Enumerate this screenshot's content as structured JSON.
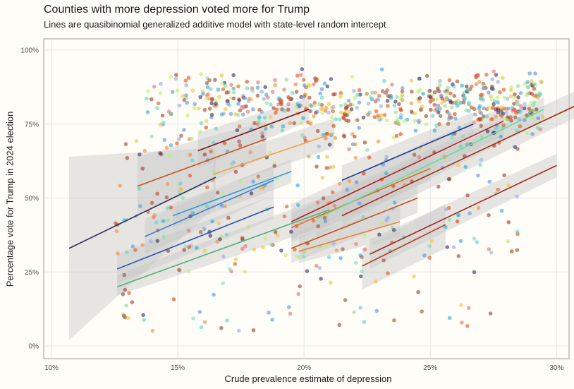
{
  "chart_data": {
    "type": "scatter",
    "title": "Counties with more depression voted more for Trump",
    "subtitle": "Lines are quasibinomial generalized additive model with state-level random intercept",
    "xlabel": "Crude prevalence estimate of depression",
    "ylabel": "Percentage vote for Trump in 2024 election",
    "xlim": [
      10,
      30.8
    ],
    "ylim": [
      0,
      100
    ],
    "x_ticks": [
      "10%",
      "15%",
      "20%",
      "25%",
      "30%"
    ],
    "y_ticks": [
      "0%",
      "25%",
      "50%",
      "75%",
      "100%"
    ],
    "grid": true,
    "legend": "none",
    "series": [
      {
        "color": "#2b2d5b",
        "x": [
          10.7,
          16.5
        ],
        "y": [
          33,
          57
        ],
        "band": [
          [
            10.7,
            2,
            64
          ],
          [
            16.5,
            47,
            67
          ]
        ]
      },
      {
        "color": "#c8541a",
        "x": [
          13.4,
          18.5
        ],
        "y": [
          54,
          70
        ],
        "band": [
          [
            13.4,
            44,
            64
          ],
          [
            18.5,
            64,
            76
          ]
        ]
      },
      {
        "color": "#7a1515",
        "x": [
          15.8,
          20.2
        ],
        "y": [
          66,
          80
        ],
        "band": [
          [
            15.8,
            60,
            72
          ],
          [
            20.2,
            76,
            84
          ]
        ]
      },
      {
        "color": "#3a7fd0",
        "x": [
          13.7,
          18.8
        ],
        "y": [
          37,
          56
        ],
        "band": [
          [
            13.7,
            31,
            43
          ],
          [
            18.8,
            51,
            61
          ]
        ]
      },
      {
        "color": "#f1a340",
        "x": [
          16.4,
          21.2
        ],
        "y": [
          58,
          72
        ],
        "band": [
          [
            16.4,
            53,
            63
          ],
          [
            21.2,
            67,
            77
          ]
        ]
      },
      {
        "color": "#2a52a8",
        "x": [
          12.6,
          18.8
        ],
        "y": [
          26,
          47
        ],
        "band": [
          [
            12.6,
            21,
            31
          ],
          [
            18.8,
            43,
            51
          ]
        ]
      },
      {
        "color": "#4db37a",
        "x": [
          12.6,
          21.0
        ],
        "y": [
          20,
          46
        ],
        "band": [
          [
            12.6,
            17,
            24
          ],
          [
            21.0,
            41,
            51
          ]
        ]
      },
      {
        "color": "#2e9be0",
        "x": [
          14.8,
          19.5
        ],
        "y": [
          44,
          59
        ],
        "band": [
          [
            14.8,
            40,
            48
          ],
          [
            19.5,
            55,
            63
          ]
        ]
      },
      {
        "color": "#b22222",
        "x": [
          19.5,
          27.9
        ],
        "y": [
          42,
          76
        ],
        "band": [
          [
            19.5,
            36,
            48
          ],
          [
            27.9,
            71,
            81
          ]
        ]
      },
      {
        "color": "#1f3a93",
        "x": [
          21.5,
          26.7
        ],
        "y": [
          56,
          75
        ],
        "band": [
          [
            21.5,
            51,
            61
          ],
          [
            26.7,
            71,
            79
          ]
        ]
      },
      {
        "color": "#e86a1a",
        "x": [
          19.5,
          25.0
        ],
        "y": [
          40,
          60
        ],
        "band": [
          [
            19.5,
            35,
            45
          ],
          [
            25.0,
            56,
            65
          ]
        ]
      },
      {
        "color": "#5fe09a",
        "x": [
          20.5,
          29.5
        ],
        "y": [
          43,
          80
        ],
        "band": [
          [
            20.5,
            37,
            49
          ],
          [
            29.5,
            76,
            84
          ]
        ]
      },
      {
        "color": "#a82a0e",
        "x": [
          21.5,
          30.7
        ],
        "y": [
          44,
          81
        ],
        "band": [
          [
            21.5,
            39,
            50
          ],
          [
            30.7,
            77,
            86
          ]
        ]
      },
      {
        "color": "#c74e12",
        "x": [
          19.5,
          24.5
        ],
        "y": [
          33,
          50
        ],
        "band": [
          [
            19.5,
            28,
            38
          ],
          [
            24.5,
            45,
            55
          ]
        ]
      },
      {
        "color": "#f07f2a",
        "x": [
          19.8,
          23.8
        ],
        "y": [
          32,
          42
        ],
        "band": [
          [
            19.8,
            28,
            37
          ],
          [
            23.8,
            37,
            47
          ]
        ]
      },
      {
        "color": "#a3271a",
        "x": [
          22.6,
          30.0
        ],
        "y": [
          31,
          61
        ],
        "band": [
          [
            22.6,
            26,
            36
          ],
          [
            30.0,
            57,
            65
          ]
        ]
      },
      {
        "color": "#b5381e",
        "x": [
          22.3,
          25.6
        ],
        "y": [
          27,
          41
        ],
        "band": [
          [
            22.3,
            19,
            33
          ],
          [
            25.6,
            33,
            48
          ]
        ]
      }
    ],
    "clusters": [
      {
        "name": "scatter-cluster-upper",
        "x_range": [
          13.5,
          29.5
        ],
        "y_range": [
          70,
          95
        ],
        "count": 620
      },
      {
        "name": "scatter-cluster-middle",
        "x_range": [
          12.5,
          28.5
        ],
        "y_range": [
          30,
          72
        ],
        "count": 260
      },
      {
        "name": "scatter-cluster-lower",
        "x_range": [
          12.5,
          27.5
        ],
        "y_range": [
          5,
          35
        ],
        "count": 90
      }
    ]
  }
}
